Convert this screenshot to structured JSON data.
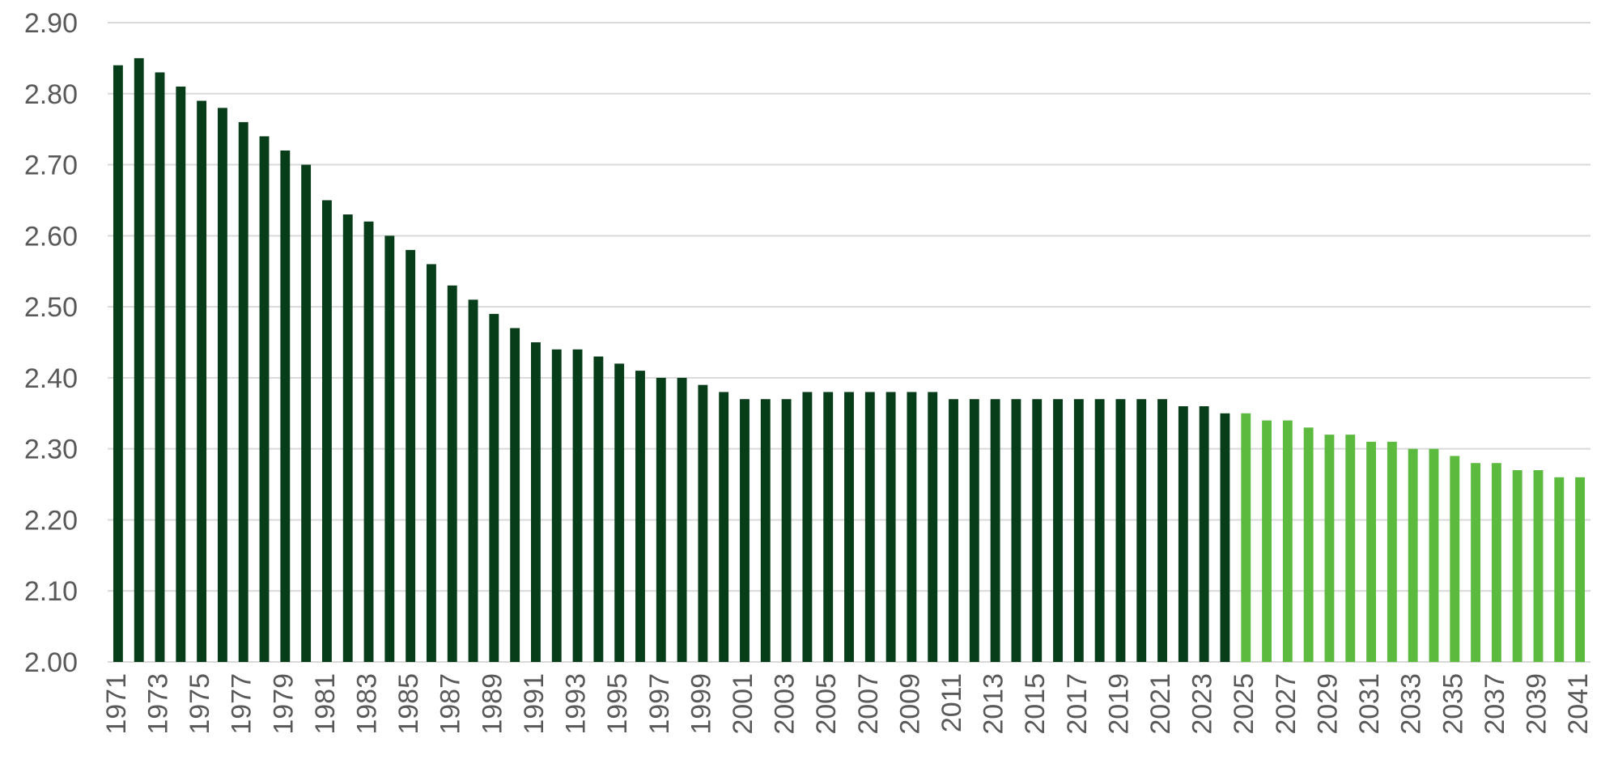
{
  "chart_data": {
    "type": "bar",
    "title": "",
    "xlabel": "",
    "ylabel": "",
    "ylim": [
      2.0,
      2.9
    ],
    "y_ticks": [
      "2.00",
      "2.10",
      "2.20",
      "2.30",
      "2.40",
      "2.50",
      "2.60",
      "2.70",
      "2.80",
      "2.90"
    ],
    "grid": true,
    "legend": "none",
    "colors": {
      "historical": "#083d19",
      "projected": "#5cbb3f",
      "grid": "#d9d9d9",
      "tick_text": "#595959"
    },
    "projection_start": "2025",
    "categories": [
      "1971",
      "1972",
      "1973",
      "1974",
      "1975",
      "1976",
      "1977",
      "1978",
      "1979",
      "1980",
      "1981",
      "1982",
      "1983",
      "1984",
      "1985",
      "1986",
      "1987",
      "1988",
      "1989",
      "1990",
      "1991",
      "1992",
      "1993",
      "1994",
      "1995",
      "1996",
      "1997",
      "1998",
      "1999",
      "2000",
      "2001",
      "2002",
      "2003",
      "2004",
      "2005",
      "2006",
      "2007",
      "2008",
      "2009",
      "2010",
      "2011",
      "2012",
      "2013",
      "2014",
      "2015",
      "2016",
      "2017",
      "2018",
      "2019",
      "2020",
      "2021",
      "2022",
      "2023",
      "2024",
      "2025",
      "2026",
      "2027",
      "2028",
      "2029",
      "2030",
      "2031",
      "2032",
      "2033",
      "2034",
      "2035",
      "2036",
      "2037",
      "2038",
      "2039",
      "2040",
      "2041"
    ],
    "x_tick_labels": [
      "1971",
      "1973",
      "1975",
      "1977",
      "1979",
      "1981",
      "1983",
      "1985",
      "1987",
      "1989",
      "1991",
      "1993",
      "1995",
      "1997",
      "1999",
      "2001",
      "2003",
      "2005",
      "2007",
      "2009",
      "2011",
      "2013",
      "2015",
      "2017",
      "2019",
      "2021",
      "2023",
      "2025",
      "2027",
      "2029",
      "2031",
      "2033",
      "2035",
      "2037",
      "2039",
      "2041"
    ],
    "values": [
      2.84,
      2.85,
      2.83,
      2.81,
      2.79,
      2.78,
      2.76,
      2.74,
      2.72,
      2.7,
      2.65,
      2.63,
      2.62,
      2.6,
      2.58,
      2.56,
      2.53,
      2.51,
      2.49,
      2.47,
      2.45,
      2.44,
      2.44,
      2.43,
      2.42,
      2.41,
      2.4,
      2.4,
      2.39,
      2.38,
      2.37,
      2.37,
      2.37,
      2.38,
      2.38,
      2.38,
      2.38,
      2.38,
      2.38,
      2.38,
      2.37,
      2.37,
      2.37,
      2.37,
      2.37,
      2.37,
      2.37,
      2.37,
      2.37,
      2.37,
      2.37,
      2.36,
      2.36,
      2.35,
      2.35,
      2.34,
      2.34,
      2.33,
      2.32,
      2.32,
      2.31,
      2.31,
      2.3,
      2.3,
      2.29,
      2.28,
      2.28,
      2.27,
      2.27,
      2.26,
      2.26
    ]
  }
}
